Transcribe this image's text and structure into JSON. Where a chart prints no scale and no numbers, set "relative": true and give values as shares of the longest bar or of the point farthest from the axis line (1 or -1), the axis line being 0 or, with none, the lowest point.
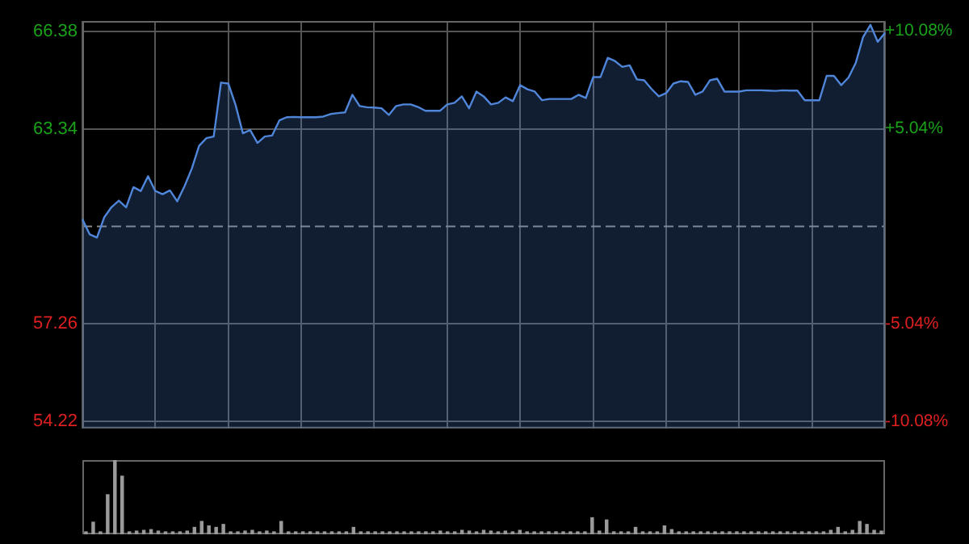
{
  "chart_data": [
    {
      "type": "area",
      "categories": [
        null,
        null,
        null,
        null,
        null,
        null,
        null,
        null,
        null,
        null,
        null,
        null,
        null,
        null,
        null,
        null,
        null,
        null,
        null,
        null,
        null,
        null,
        null,
        null,
        null,
        null,
        null,
        null,
        null,
        null,
        null,
        null,
        null,
        null,
        null,
        null,
        null,
        null,
        null,
        null,
        null,
        null,
        null,
        null,
        null,
        null,
        null,
        null,
        null,
        null,
        null,
        null,
        null,
        null,
        null,
        null,
        null,
        null,
        null,
        null,
        null,
        null,
        null,
        null,
        null,
        null,
        null,
        null,
        null,
        null,
        null,
        null,
        null,
        null,
        null,
        null,
        null,
        null,
        null,
        null,
        null,
        null,
        null,
        null,
        null,
        null,
        null,
        null,
        null,
        null,
        null,
        null,
        null,
        null,
        null,
        null,
        null,
        null,
        null,
        null,
        null,
        null,
        null,
        null,
        null,
        null,
        null,
        null,
        null,
        null,
        null
      ],
      "series": [
        {
          "color": "#4f86d9",
          "values": [
            60.52,
            60.05,
            59.95,
            60.58,
            60.9,
            61.1,
            60.89,
            61.52,
            61.4,
            61.86,
            61.4,
            61.3,
            61.42,
            61.08,
            61.55,
            62.1,
            62.81,
            63.05,
            63.1,
            64.78,
            64.75,
            64.08,
            63.2,
            63.3,
            62.9,
            63.1,
            63.13,
            63.6,
            63.7,
            63.71,
            63.7,
            63.7,
            63.7,
            63.72,
            63.8,
            63.83,
            63.85,
            64.4,
            64.05,
            64.01,
            64.0,
            63.98,
            63.77,
            64.05,
            64.1,
            64.1,
            64.02,
            63.9,
            63.9,
            63.9,
            64.1,
            64.15,
            64.35,
            63.98,
            64.5,
            64.35,
            64.1,
            64.15,
            64.32,
            64.2,
            64.7,
            64.57,
            64.5,
            64.23,
            64.27,
            64.27,
            64.27,
            64.27,
            64.4,
            64.3,
            64.95,
            64.95,
            65.55,
            65.45,
            65.27,
            65.32,
            64.88,
            64.85,
            64.58,
            64.35,
            64.45,
            64.75,
            64.82,
            64.8,
            64.4,
            64.5,
            64.85,
            64.9,
            64.5,
            64.5,
            64.5,
            64.54,
            64.54,
            64.54,
            64.53,
            64.52,
            64.54,
            64.53,
            64.53,
            64.23,
            64.23,
            64.23,
            64.99,
            64.99,
            64.7,
            64.94,
            65.4,
            66.2,
            66.58,
            66.05,
            66.33
          ]
        }
      ],
      "ylim": [
        54.0,
        66.7
      ],
      "yticks": [
        54.22,
        57.26,
        63.34,
        66.38
      ],
      "y2lim": [
        -10.45,
        10.61
      ],
      "y2ticks": [
        {
          "value": -10.08,
          "label": "-10.08%"
        },
        {
          "value": -5.04,
          "label": "-5.04%"
        },
        {
          "value": 5.04,
          "label": "+5.04%"
        },
        {
          "value": 10.08,
          "label": "+10.08%"
        }
      ],
      "ref_lines": [
        {
          "axis": "y",
          "value": 60.3,
          "color": "#8a8a8a",
          "line_style": "dashed"
        }
      ],
      "grid": true,
      "tick_labels": "y"
    },
    {
      "type": "bar",
      "relative": true,
      "tick_labels": false,
      "categories": [
        null,
        null,
        null,
        null,
        null,
        null,
        null,
        null,
        null,
        null,
        null,
        null,
        null,
        null,
        null,
        null,
        null,
        null,
        null,
        null,
        null,
        null,
        null,
        null,
        null,
        null,
        null,
        null,
        null,
        null,
        null,
        null,
        null,
        null,
        null,
        null,
        null,
        null,
        null,
        null,
        null,
        null,
        null,
        null,
        null,
        null,
        null,
        null,
        null,
        null,
        null,
        null,
        null,
        null,
        null,
        null,
        null,
        null,
        null,
        null,
        null,
        null,
        null,
        null,
        null,
        null,
        null,
        null,
        null,
        null,
        null,
        null,
        null,
        null,
        null,
        null,
        null,
        null,
        null,
        null,
        null,
        null,
        null,
        null,
        null,
        null,
        null,
        null,
        null,
        null,
        null,
        null,
        null,
        null,
        null,
        null,
        null,
        null,
        null,
        null,
        null,
        null,
        null,
        null,
        null,
        null,
        null,
        null,
        null,
        null,
        null
      ],
      "series": [
        {
          "color": "#9a9a9a",
          "values": [
            0.04,
            0.17,
            0.04,
            0.54,
            1.0,
            0.79,
            0.04,
            0.05,
            0.06,
            0.07,
            0.05,
            0.04,
            0.04,
            0.04,
            0.05,
            0.1,
            0.18,
            0.12,
            0.1,
            0.14,
            0.04,
            0.04,
            0.05,
            0.06,
            0.04,
            0.05,
            0.04,
            0.18,
            0.04,
            0.04,
            0.04,
            0.04,
            0.04,
            0.04,
            0.04,
            0.04,
            0.04,
            0.1,
            0.04,
            0.04,
            0.04,
            0.04,
            0.04,
            0.04,
            0.04,
            0.04,
            0.04,
            0.04,
            0.04,
            0.05,
            0.04,
            0.04,
            0.06,
            0.05,
            0.04,
            0.06,
            0.05,
            0.04,
            0.05,
            0.04,
            0.06,
            0.04,
            0.04,
            0.04,
            0.04,
            0.04,
            0.04,
            0.04,
            0.04,
            0.04,
            0.23,
            0.05,
            0.2,
            0.04,
            0.04,
            0.04,
            0.1,
            0.04,
            0.04,
            0.04,
            0.12,
            0.07,
            0.04,
            0.04,
            0.04,
            0.04,
            0.04,
            0.04,
            0.04,
            0.04,
            0.04,
            0.04,
            0.04,
            0.04,
            0.04,
            0.04,
            0.04,
            0.04,
            0.04,
            0.04,
            0.04,
            0.04,
            0.04,
            0.06,
            0.1,
            0.04,
            0.06,
            0.18,
            0.14,
            0.06,
            0.05
          ]
        }
      ]
    }
  ]
}
